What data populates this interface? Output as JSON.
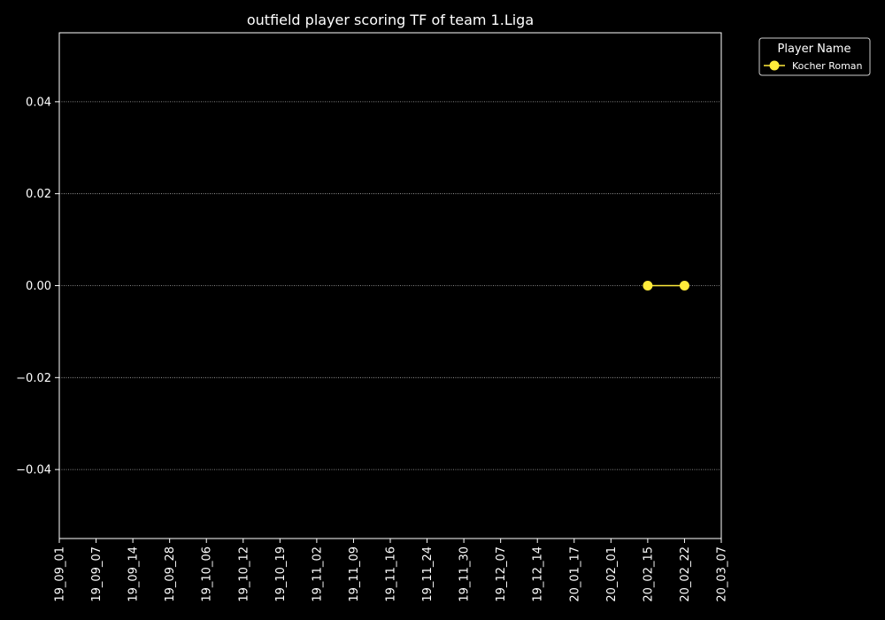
{
  "chart_data": {
    "type": "line",
    "title": "outfield player scoring TF of team 1.Liga",
    "xlabel": "",
    "ylabel": "",
    "categories": [
      "19_09_01",
      "19_09_07",
      "19_09_14",
      "19_09_28",
      "19_10_06",
      "19_10_12",
      "19_10_19",
      "19_11_02",
      "19_11_09",
      "19_11_16",
      "19_11_24",
      "19_11_30",
      "19_12_07",
      "19_12_14",
      "20_01_17",
      "20_02_01",
      "20_02_15",
      "20_02_22",
      "20_03_07"
    ],
    "ylim": [
      -0.055,
      0.055
    ],
    "yticks": [
      -0.04,
      -0.02,
      0.0,
      0.02,
      0.04
    ],
    "ytick_labels": [
      "−0.04",
      "−0.02",
      "0.00",
      "0.02",
      "0.04"
    ],
    "grid": "y",
    "legend": {
      "title": "Player Name",
      "placement": "top-right-outside"
    },
    "series": [
      {
        "name": "Kocher Roman",
        "color": "#ffeb3b",
        "points": [
          {
            "x": "20_02_15",
            "y": 0.0
          },
          {
            "x": "20_02_22",
            "y": 0.0
          }
        ]
      }
    ]
  }
}
